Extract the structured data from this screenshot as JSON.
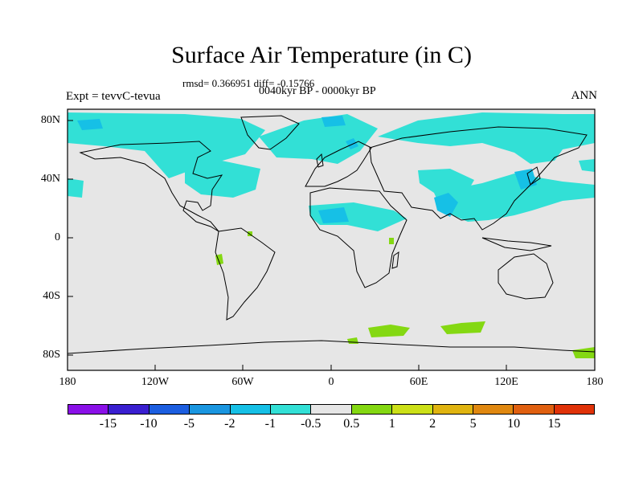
{
  "title": "Surface Air Temperature (in C)",
  "stats_line": "rmsd= 0.366951 diff= -0.15766",
  "period": "0040kyr BP - 0000kyr BP",
  "experiment": "Expt = tevvC-tevua",
  "season": "ANN",
  "lat_labels": [
    "80N",
    "40N",
    "0",
    "40S",
    "80S"
  ],
  "lon_labels": [
    "180",
    "120W",
    "60W",
    "0",
    "60E",
    "120E",
    "180"
  ],
  "colorbar": {
    "labels": [
      "-15",
      "-10",
      "-5",
      "-2",
      "-1",
      "-0.5",
      "0.5",
      "1",
      "2",
      "5",
      "10",
      "15"
    ],
    "colors": [
      "#8a10e8",
      "#3a1fd0",
      "#1c5ee0",
      "#1a96e0",
      "#16c0e6",
      "#32e0d6",
      "#e6e6e6",
      "#84d812",
      "#cce018",
      "#e0b410",
      "#e08810",
      "#e06010",
      "#e03208"
    ]
  },
  "colors": {
    "land_default": "#e6e6e6",
    "cool_light": "#32e0d6",
    "cool": "#16c0e6",
    "cool_strong": "#1a96e0",
    "warm_light": "#84d812"
  }
}
